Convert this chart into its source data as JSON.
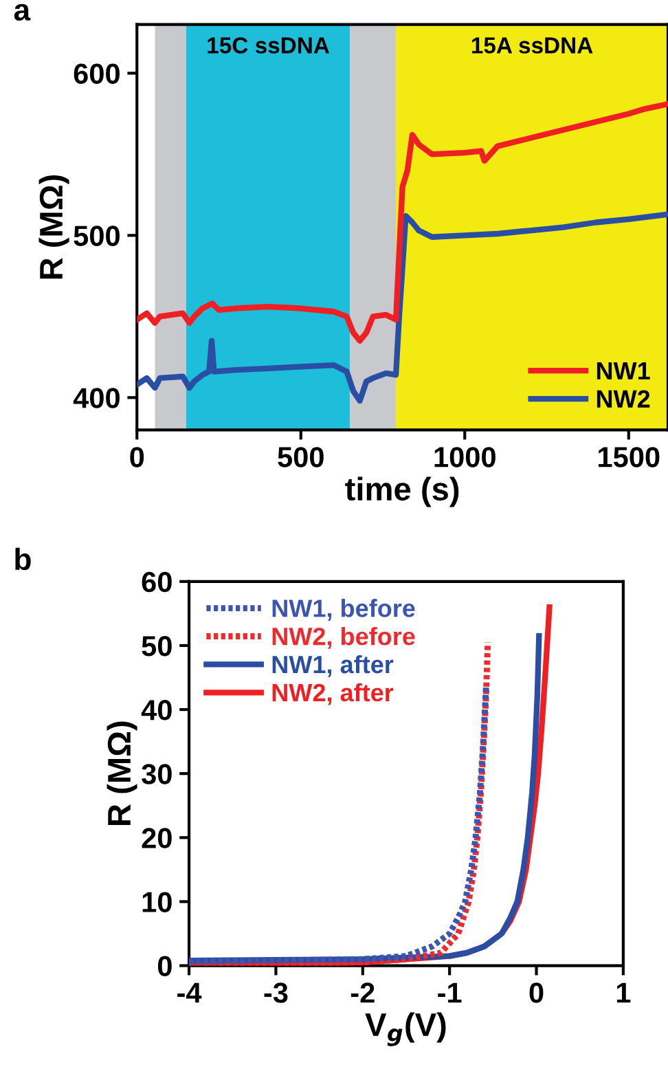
{
  "chart_data": [
    {
      "type": "line",
      "title": "a",
      "xlabel": "time (s)",
      "ylabel": "R (MΩ)",
      "xlim": [
        0,
        1620
      ],
      "ylim": [
        380,
        630
      ],
      "xticks": [
        0,
        500,
        1000,
        1500
      ],
      "yticks": [
        400,
        500,
        600
      ],
      "grid": false,
      "legend": "bottom right",
      "line_style": "solid",
      "marker": "none",
      "bands": [
        {
          "axis": "x",
          "from": 55,
          "to": 150,
          "label": null,
          "color": "#c8c9cd"
        },
        {
          "axis": "x",
          "from": 150,
          "to": 650,
          "label": "15C ssDNA",
          "color": "#1ebedb"
        },
        {
          "axis": "x",
          "from": 650,
          "to": 790,
          "label": null,
          "color": "#c8c9cd"
        },
        {
          "axis": "x",
          "from": 790,
          "to": 1620,
          "label": "15A ssDNA",
          "color": "#f3ea12"
        }
      ],
      "series": [
        {
          "name": "NW1",
          "color": "#ee2024",
          "x": [
            0,
            30,
            55,
            70,
            140,
            160,
            175,
            200,
            230,
            250,
            300,
            400,
            500,
            600,
            640,
            660,
            680,
            700,
            720,
            760,
            790,
            800,
            810,
            825,
            840,
            860,
            900,
            1000,
            1050,
            1060,
            1100,
            1200,
            1300,
            1400,
            1500,
            1550,
            1620
          ],
          "values": [
            448,
            452,
            446,
            450,
            452,
            446,
            450,
            455,
            458,
            454,
            455,
            456,
            455,
            453,
            450,
            440,
            435,
            440,
            450,
            451,
            448,
            490,
            530,
            540,
            562,
            556,
            550,
            551,
            552,
            546,
            555,
            560,
            565,
            570,
            575,
            578,
            581
          ]
        },
        {
          "name": "NW2",
          "color": "#2a4ea3",
          "x": [
            0,
            30,
            55,
            70,
            140,
            160,
            175,
            200,
            220,
            228,
            235,
            300,
            400,
            500,
            600,
            640,
            660,
            680,
            700,
            720,
            760,
            790,
            800,
            810,
            820,
            840,
            860,
            900,
            1000,
            1100,
            1200,
            1300,
            1400,
            1500,
            1620
          ],
          "values": [
            408,
            412,
            406,
            412,
            413,
            406,
            410,
            414,
            416,
            435,
            416,
            417,
            418,
            419,
            420,
            416,
            404,
            398,
            410,
            412,
            415,
            414,
            450,
            480,
            512,
            508,
            503,
            499,
            500,
            501,
            503,
            505,
            508,
            510,
            513
          ]
        }
      ]
    },
    {
      "type": "line",
      "title": "b",
      "xlabel": "V$_{g}$(V)",
      "ylabel": "R (MΩ)",
      "xlim": [
        -4,
        1
      ],
      "ylim": [
        0,
        60
      ],
      "xticks": [
        -4,
        -3,
        -2,
        -1,
        0,
        1
      ],
      "yticks": [
        0,
        10,
        20,
        30,
        40,
        50,
        60
      ],
      "grid": false,
      "legend": "top left",
      "marker": "none",
      "series": [
        {
          "name": "NW1, before",
          "color": "#3c55b0",
          "line_style": "dotted",
          "x": [
            -4,
            -3,
            -2,
            -1.5,
            -1.2,
            -1.0,
            -0.9,
            -0.82,
            -0.75,
            -0.7,
            -0.65,
            -0.62,
            -0.6,
            -0.58
          ],
          "values": [
            0.6,
            0.8,
            1,
            1.5,
            3,
            5,
            7.5,
            10,
            15,
            20,
            27,
            33,
            38,
            43.5
          ]
        },
        {
          "name": "NW2, before",
          "color": "#ee2a2e",
          "line_style": "dotted",
          "x": [
            -4,
            -3,
            -2,
            -1.5,
            -1.1,
            -0.9,
            -0.78,
            -0.72,
            -0.68,
            -0.64,
            -0.61,
            -0.58,
            -0.56
          ],
          "values": [
            0.2,
            0.3,
            0.5,
            1,
            2,
            5,
            10,
            15,
            20,
            27,
            34,
            42,
            50.5
          ]
        },
        {
          "name": "NW1, after",
          "color": "#2a4ea3",
          "line_style": "solid",
          "x": [
            -4,
            -3,
            -2,
            -1,
            -0.8,
            -0.6,
            -0.4,
            -0.3,
            -0.22,
            -0.15,
            -0.1,
            -0.05,
            -0.02,
            0.01,
            0.03
          ],
          "values": [
            0.8,
            0.9,
            1,
            1.5,
            2,
            3,
            5,
            7.5,
            10,
            15,
            20,
            27,
            33,
            42,
            51.5
          ]
        },
        {
          "name": "NW2, after",
          "color": "#ee2024",
          "line_style": "solid",
          "x": [
            -4,
            -3,
            -2,
            -1.5,
            -1,
            -0.8,
            -0.6,
            -0.4,
            -0.3,
            -0.2,
            -0.12,
            -0.07,
            -0.02,
            0.02,
            0.06,
            0.1,
            0.15
          ],
          "values": [
            0.1,
            0.2,
            0.5,
            1,
            1.5,
            2,
            3,
            5,
            7,
            10,
            15,
            20,
            25,
            30,
            37,
            45,
            56
          ]
        }
      ]
    }
  ]
}
